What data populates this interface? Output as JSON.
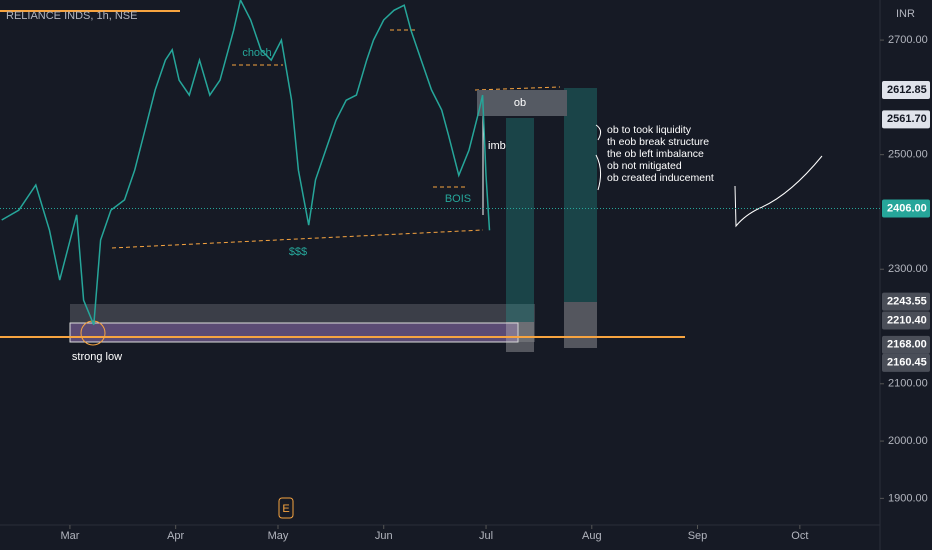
{
  "chart_data": {
    "type": "line",
    "title": "RELIANCE INDS, 1h, NSE",
    "currency": "INR",
    "color": "#26a69a",
    "x": [
      -20,
      -15,
      -10,
      -6,
      -3,
      2,
      4,
      7,
      9,
      12,
      16,
      19,
      22,
      25,
      28,
      30,
      32,
      35,
      38,
      41,
      44,
      48,
      50,
      53,
      56,
      59,
      62,
      65,
      67,
      70,
      72,
      75,
      78,
      81,
      84,
      87,
      89,
      92,
      95,
      98,
      100,
      103,
      106,
      109,
      111,
      114,
      117,
      120,
      121,
      122,
      123
    ],
    "values": [
      2386,
      2403,
      2447,
      2368,
      2281,
      2395,
      2246,
      2203,
      2351,
      2403,
      2421,
      2473,
      2543,
      2613,
      2665,
      2683,
      2630,
      2604,
      2665,
      2604,
      2630,
      2717,
      2770,
      2735,
      2683,
      2665,
      2700,
      2595,
      2473,
      2377,
      2456,
      2508,
      2560,
      2595,
      2604,
      2665,
      2700,
      2735,
      2752,
      2761,
      2717,
      2665,
      2613,
      2578,
      2534,
      2464,
      2508,
      2578,
      2604,
      2464,
      2368
    ],
    "xlim": [
      -20.5,
      237.5
    ],
    "xticks": [
      {
        "value": 0,
        "label": "Mar"
      },
      {
        "value": 31,
        "label": "Apr"
      },
      {
        "value": 61,
        "label": "May"
      },
      {
        "value": 92,
        "label": "Jun"
      },
      {
        "value": 122,
        "label": "Jul"
      },
      {
        "value": 153,
        "label": "Aug"
      },
      {
        "value": 184,
        "label": "Sep"
      },
      {
        "value": 214,
        "label": "Oct"
      }
    ],
    "ylim": [
      1850,
      2770
    ],
    "yticks": [
      {
        "value": 1900,
        "label": "1900.00"
      },
      {
        "value": 2000,
        "label": "2000.00"
      },
      {
        "value": 2100,
        "label": "2100.00"
      },
      {
        "value": 2300,
        "label": "2300.00"
      },
      {
        "value": 2500,
        "label": "2500.00"
      },
      {
        "value": 2700,
        "label": "2700.00"
      }
    ],
    "price_labels": [
      {
        "value": 2612.85,
        "label": "2612.85"
      },
      {
        "value": 2561.7,
        "label": "2561.70"
      },
      {
        "value": 2406,
        "label": "2406.00"
      },
      {
        "value": 2243.55,
        "label": "2243.55"
      },
      {
        "value": 2210.4,
        "label": "2210.40"
      },
      {
        "value": 2168,
        "label": "2168.00"
      },
      {
        "value": 2160.45,
        "label": "2160.45"
      }
    ],
    "annotations": {
      "choch": "choch",
      "liquidity": "$$$",
      "bois": "BOIS",
      "imb": "imb",
      "ob": "ob",
      "strong_low": "strong low",
      "earnings": "E",
      "notes": [
        "ob to took liquidity",
        "th eob break structure",
        "the ob left imbalance",
        "ob not mitigated",
        "ob created inducement"
      ]
    }
  }
}
